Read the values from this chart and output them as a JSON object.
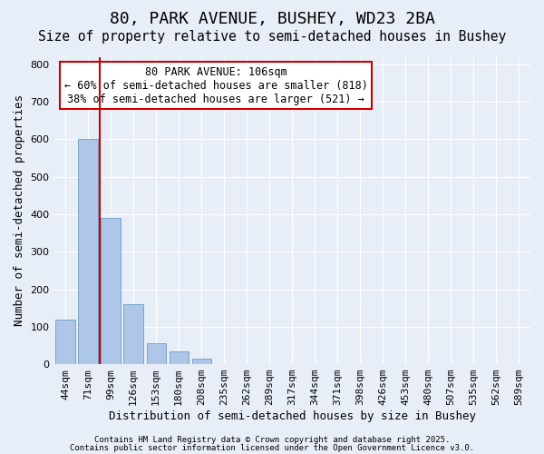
{
  "title": "80, PARK AVENUE, BUSHEY, WD23 2BA",
  "subtitle": "Size of property relative to semi-detached houses in Bushey",
  "xlabel": "Distribution of semi-detached houses by size in Bushey",
  "ylabel": "Number of semi-detached properties",
  "bar_values": [
    120,
    600,
    390,
    160,
    55,
    33,
    14,
    0,
    0,
    0,
    0,
    0,
    0,
    0,
    0,
    0,
    0,
    0,
    0,
    0,
    0
  ],
  "bar_labels": [
    "44sqm",
    "71sqm",
    "99sqm",
    "126sqm",
    "153sqm",
    "180sqm",
    "208sqm",
    "235sqm",
    "262sqm",
    "289sqm",
    "317sqm",
    "344sqm",
    "371sqm",
    "398sqm",
    "426sqm",
    "453sqm",
    "480sqm",
    "507sqm",
    "535sqm",
    "562sqm",
    "589sqm"
  ],
  "bar_color": "#aec6e8",
  "bar_edge_color": "#6a9ec0",
  "background_color": "#e8eef7",
  "grid_color": "#ffffff",
  "vline_color": "#cc0000",
  "vline_x": 1.5,
  "ylim": [
    0,
    820
  ],
  "yticks": [
    0,
    100,
    200,
    300,
    400,
    500,
    600,
    700,
    800
  ],
  "annotation_title": "80 PARK AVENUE: 106sqm",
  "annotation_line1": "← 60% of semi-detached houses are smaller (818)",
  "annotation_line2": "38% of semi-detached houses are larger (521) →",
  "annotation_box_color": "#ffffff",
  "annotation_box_edge": "#cc0000",
  "footer_line1": "Contains HM Land Registry data © Crown copyright and database right 2025.",
  "footer_line2": "Contains public sector information licensed under the Open Government Licence v3.0.",
  "title_fontsize": 13,
  "subtitle_fontsize": 10.5,
  "axis_label_fontsize": 9,
  "tick_fontsize": 8,
  "annotation_fontsize": 8.5,
  "footer_fontsize": 6.5
}
